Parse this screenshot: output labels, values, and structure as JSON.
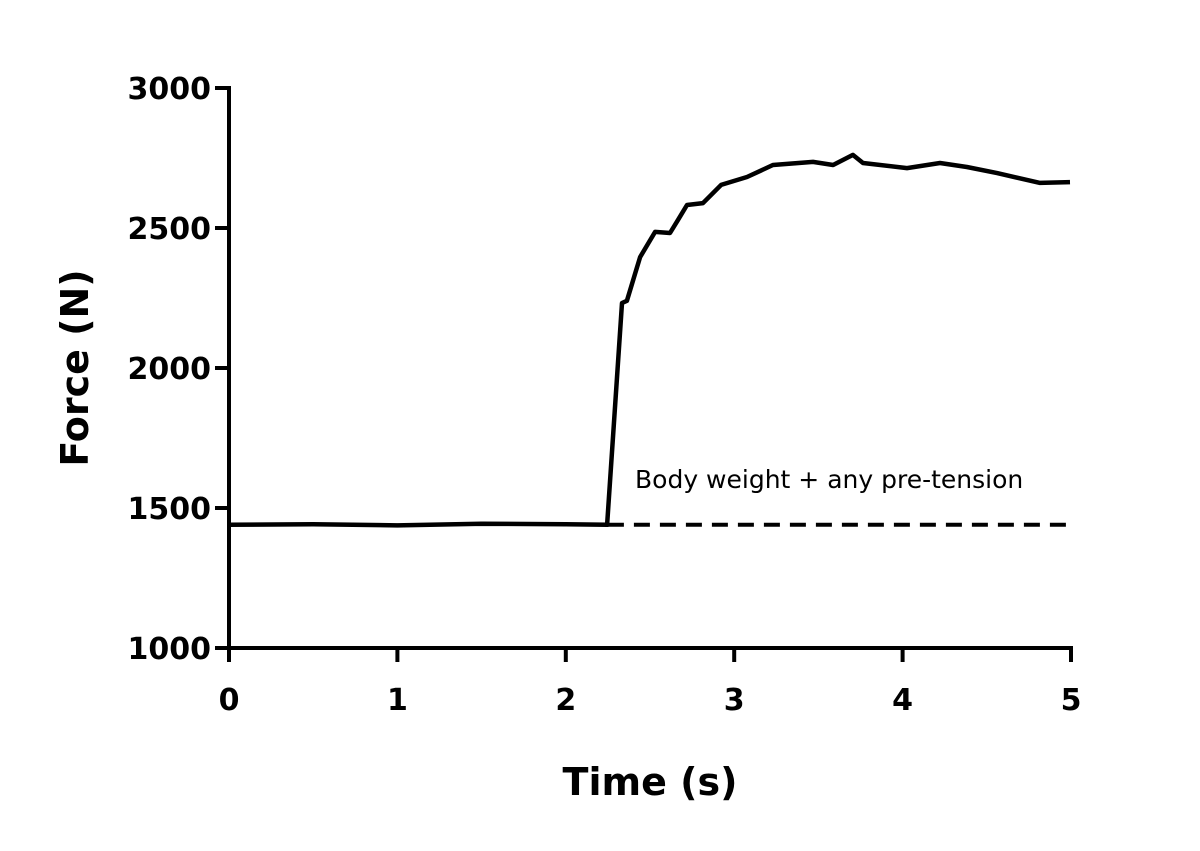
{
  "chart_data": {
    "type": "line",
    "title": "",
    "xlabel": "Time (s)",
    "ylabel": "Force (N)",
    "xlim": [
      0,
      5
    ],
    "ylim": [
      1000,
      3000
    ],
    "xticks": [
      0,
      1,
      2,
      3,
      4,
      5
    ],
    "xtick_labels": [
      "0",
      "1",
      "2",
      "3",
      "4",
      "5"
    ],
    "yticks": [
      1000,
      1500,
      2000,
      2500,
      3000
    ],
    "ytick_labels": [
      "1000",
      "1500",
      "2000",
      "2500",
      "3000"
    ],
    "grid": false,
    "line_color": "#000000",
    "series": [
      {
        "x": [
          0,
          0.5,
          1.0,
          1.5,
          2.0,
          2.245,
          2.334,
          2.363,
          2.441,
          2.53,
          2.619,
          2.666,
          2.72,
          2.815,
          2.922,
          3.076,
          3.23,
          3.468,
          3.587,
          3.705,
          3.765,
          4.026,
          4.222,
          4.382,
          4.561,
          4.816,
          4.994
        ],
        "y": [
          1440,
          1442,
          1438,
          1444,
          1442,
          1440,
          2232,
          2240,
          2396,
          2486,
          2482,
          2529,
          2582,
          2589,
          2654,
          2682,
          2725,
          2736,
          2725,
          2761,
          2732,
          2714,
          2732,
          2718,
          2696,
          2661,
          2664
        ]
      }
    ],
    "reference_line": {
      "style": "dashed",
      "y": 1440,
      "x_range": [
        2.25,
        5
      ],
      "label": "Body weight + any pre-tension"
    }
  }
}
